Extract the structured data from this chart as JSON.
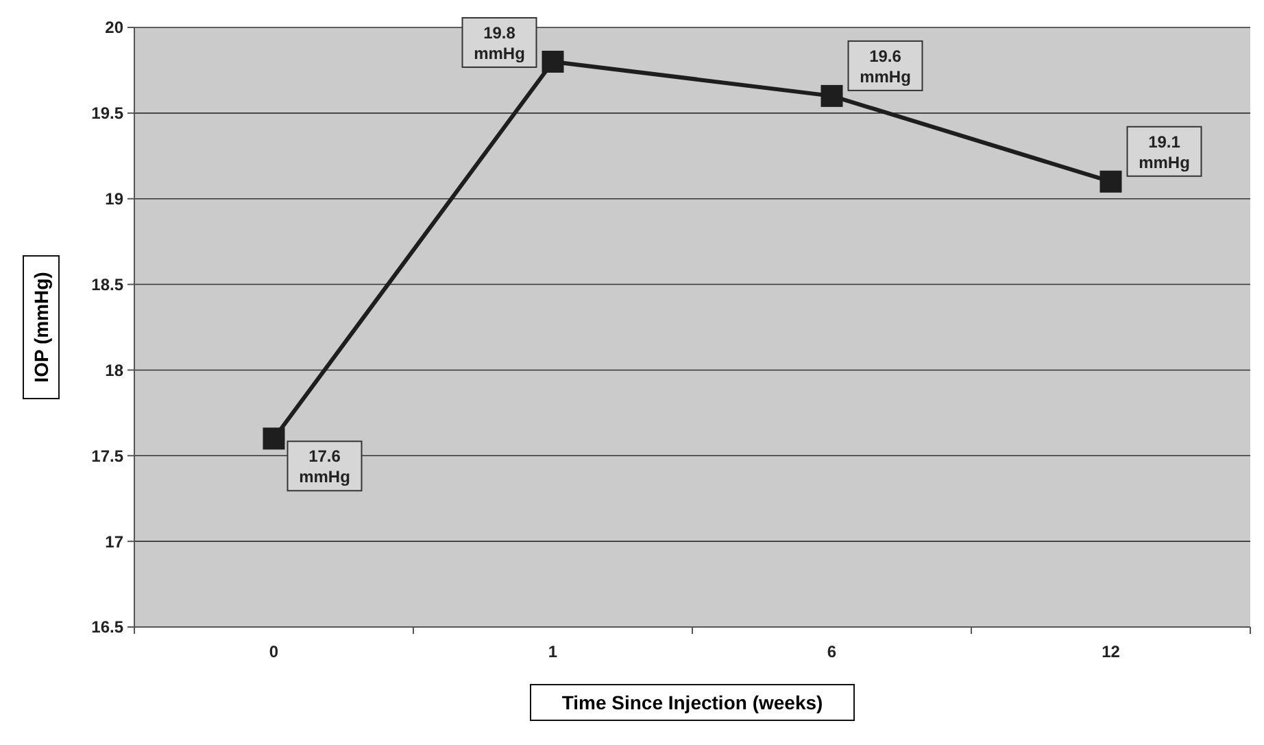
{
  "chart_data": {
    "type": "line",
    "xlabel": "Time Since Injection (weeks)",
    "ylabel": "IOP (mmHg)",
    "categories": [
      "0",
      "1",
      "6",
      "12"
    ],
    "series": [
      {
        "color": "#1e1e1e",
        "values": [
          17.6,
          19.8,
          19.6,
          19.1
        ],
        "value_labels": [
          "17.6 mmHg",
          "19.8 mmHg",
          "19.6 mmHg",
          "19.1 mmHg"
        ]
      }
    ],
    "ylim": [
      16.5,
      20
    ],
    "yticks": [
      16.5,
      17,
      17.5,
      18,
      18.5,
      19,
      19.5,
      20
    ],
    "grid": "y",
    "marker": "square",
    "line_style": "solid"
  }
}
